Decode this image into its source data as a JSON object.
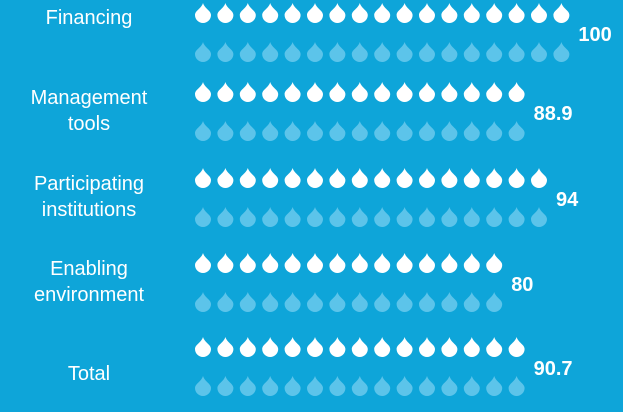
{
  "chart_data": {
    "type": "bar",
    "categories": [
      [
        "Financing"
      ],
      [
        "Management",
        "tools"
      ],
      [
        "Participating",
        "institutions"
      ],
      [
        "Enabling",
        "environment"
      ],
      [
        "Total"
      ]
    ],
    "values": [
      100,
      88.9,
      94,
      80,
      90.7
    ],
    "value_labels": [
      "100",
      "88.9",
      "94",
      "80",
      "90.7"
    ],
    "xlim": [
      0,
      100
    ],
    "title": "",
    "xlabel": "",
    "ylabel": "",
    "grid": false,
    "legend": "none",
    "colors": {
      "background": "#0ea5d9",
      "filled_drop": "#ffffff",
      "faded_drop": "#5cc4ea",
      "text": "#ffffff"
    }
  }
}
